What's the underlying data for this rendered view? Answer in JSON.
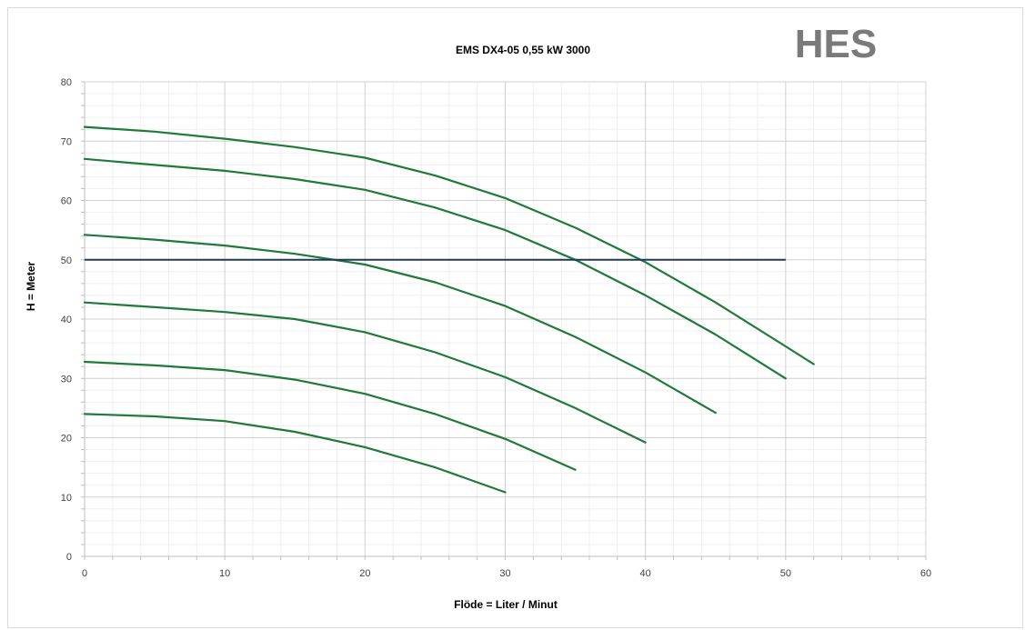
{
  "brand": {
    "logo_text": "HES",
    "logo_color": "#7a7a7a"
  },
  "chart_data": {
    "type": "line",
    "title": "EMS DX4-05 0,55 kW 3000",
    "xlabel": "Flöde = Liter / Minut",
    "ylabel": "H = Meter",
    "xlim": [
      0,
      60
    ],
    "ylim": [
      0,
      80
    ],
    "x_ticks": [
      0,
      10,
      20,
      30,
      40,
      50,
      60
    ],
    "y_ticks": [
      0,
      10,
      20,
      30,
      40,
      50,
      60,
      70,
      80
    ],
    "x_minor_step": 2,
    "y_minor_step": 2,
    "grid": true,
    "legend": "none",
    "curve_color": "#1f7a3a",
    "reference_color": "#1f3b57",
    "series": [
      {
        "x": [
          0,
          5,
          10,
          15,
          20,
          25,
          30,
          35,
          40,
          45,
          50,
          52
        ],
        "y": [
          72.4,
          71.6,
          70.4,
          69.0,
          67.2,
          64.2,
          60.4,
          55.4,
          49.6,
          42.8,
          35.4,
          32.4
        ]
      },
      {
        "x": [
          0,
          5,
          10,
          15,
          20,
          25,
          30,
          35,
          40,
          45,
          50
        ],
        "y": [
          67.0,
          66.0,
          65.0,
          63.6,
          61.8,
          58.8,
          55.0,
          50.0,
          44.0,
          37.4,
          30.0
        ]
      },
      {
        "x": [
          0,
          5,
          10,
          15,
          20,
          25,
          30,
          35,
          40,
          45
        ],
        "y": [
          54.2,
          53.4,
          52.4,
          51.0,
          49.2,
          46.2,
          42.2,
          37.0,
          31.0,
          24.2
        ]
      },
      {
        "x": [
          0,
          5,
          10,
          15,
          20,
          25,
          30,
          35,
          40
        ],
        "y": [
          42.8,
          42.0,
          41.2,
          40.0,
          37.8,
          34.4,
          30.2,
          25.0,
          19.2
        ]
      },
      {
        "x": [
          0,
          5,
          10,
          15,
          20,
          25,
          30,
          35
        ],
        "y": [
          32.8,
          32.2,
          31.4,
          29.8,
          27.4,
          24.0,
          19.8,
          14.6
        ]
      },
      {
        "x": [
          0,
          5,
          10,
          15,
          20,
          25,
          30
        ],
        "y": [
          24.0,
          23.6,
          22.8,
          21.0,
          18.4,
          15.0,
          10.8
        ]
      }
    ],
    "reference_line": {
      "x": [
        0,
        50
      ],
      "y": [
        50,
        50
      ]
    }
  }
}
